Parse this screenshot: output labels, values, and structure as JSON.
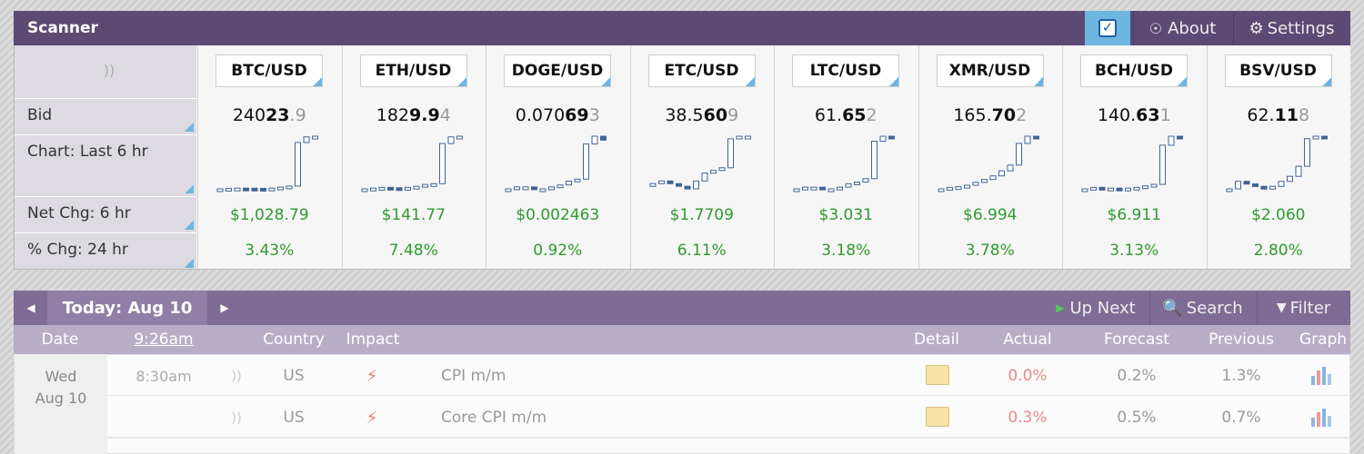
{
  "scanner": {
    "title": "Scanner",
    "about": "About",
    "settings": "Settings",
    "row_labels": [
      "Bid",
      "Chart: Last 6 hr",
      "Net Chg: 6 hr",
      "% Chg: 24 hr"
    ],
    "pairs": [
      {
        "symbol": "BTC/USD",
        "bid": [
          "240",
          "23",
          ".9"
        ],
        "chart": [
          22995,
          23005,
          23010,
          23008,
          23005,
          23000,
          23010,
          23030,
          23050,
          23900,
          24010,
          24023
        ],
        "net_chg": "$1,028.79",
        "pct_chg": "3.43%"
      },
      {
        "symbol": "ETH/USD",
        "bid": [
          "182",
          "9.9",
          "4"
        ],
        "chart": [
          1688,
          1690,
          1692,
          1691,
          1690,
          1692,
          1695,
          1700,
          1702,
          1810,
          1828,
          1829.9
        ],
        "net_chg": "$141.77",
        "pct_chg": "7.48%"
      },
      {
        "symbol": "DOGE/USD",
        "bid": [
          "0.070",
          "69",
          "3"
        ],
        "chart": [
          0.0682,
          0.0683,
          0.0683,
          0.0682,
          0.0682,
          0.0683,
          0.0684,
          0.0686,
          0.0687,
          0.0705,
          0.0709,
          0.0707
        ],
        "net_chg": "$0.002463",
        "pct_chg": "0.92%"
      },
      {
        "symbol": "ETC/USD",
        "bid": [
          "38.5",
          "60",
          "9"
        ],
        "chart": [
          36.8,
          36.9,
          36.8,
          36.7,
          36.6,
          36.9,
          37.2,
          37.3,
          37.4,
          38.5,
          38.6,
          38.6
        ],
        "net_chg": "$1.7709",
        "pct_chg": "6.11%"
      },
      {
        "symbol": "LTC/USD",
        "bid": [
          "61.",
          "65",
          "2"
        ],
        "chart": [
          58.6,
          58.7,
          58.7,
          58.6,
          58.6,
          58.7,
          58.9,
          59.0,
          59.2,
          61.4,
          61.7,
          61.65
        ],
        "net_chg": "$3.031",
        "pct_chg": "3.18%"
      },
      {
        "symbol": "XMR/USD",
        "bid": [
          "165.",
          "70",
          "2"
        ],
        "chart": [
          158.7,
          158.9,
          159.0,
          159.2,
          159.6,
          160.0,
          160.5,
          161.2,
          162.0,
          165.0,
          166.0,
          165.7
        ],
        "net_chg": "$6.994",
        "pct_chg": "3.78%"
      },
      {
        "symbol": "BCH/USD",
        "bid": [
          "140.",
          "63",
          "1"
        ],
        "chart": [
          133.7,
          133.9,
          133.8,
          133.8,
          133.7,
          133.8,
          133.9,
          134.1,
          134.3,
          139.5,
          140.7,
          140.63
        ],
        "net_chg": "$6.911",
        "pct_chg": "3.13%"
      },
      {
        "symbol": "BSV/USD",
        "bid": [
          "62.",
          "11",
          "8"
        ],
        "chart": [
          60.1,
          60.4,
          60.3,
          60.2,
          60.1,
          60.2,
          60.4,
          60.6,
          61.0,
          62.1,
          62.2,
          62.12
        ],
        "net_chg": "$2.060",
        "pct_chg": "2.80%"
      }
    ]
  },
  "calendar": {
    "day": "Today: Aug 10",
    "up_next": "Up Next",
    "search": "Search",
    "filter": "Filter",
    "headers": [
      "Date",
      "9:26am",
      "Country",
      "Impact",
      "Detail",
      "Actual",
      "Forecast",
      "Previous",
      "Graph"
    ],
    "date": [
      "Wed",
      "Aug 10"
    ],
    "events": [
      {
        "time": "8:30am",
        "country": "US",
        "name": "CPI m/m",
        "actual": "0.0%",
        "forecast": "0.2%",
        "previous": "1.3%"
      },
      {
        "country": "US",
        "name": "Core CPI m/m",
        "actual": "0.3%",
        "forecast": "0.5%",
        "previous": "0.7%"
      }
    ]
  }
}
